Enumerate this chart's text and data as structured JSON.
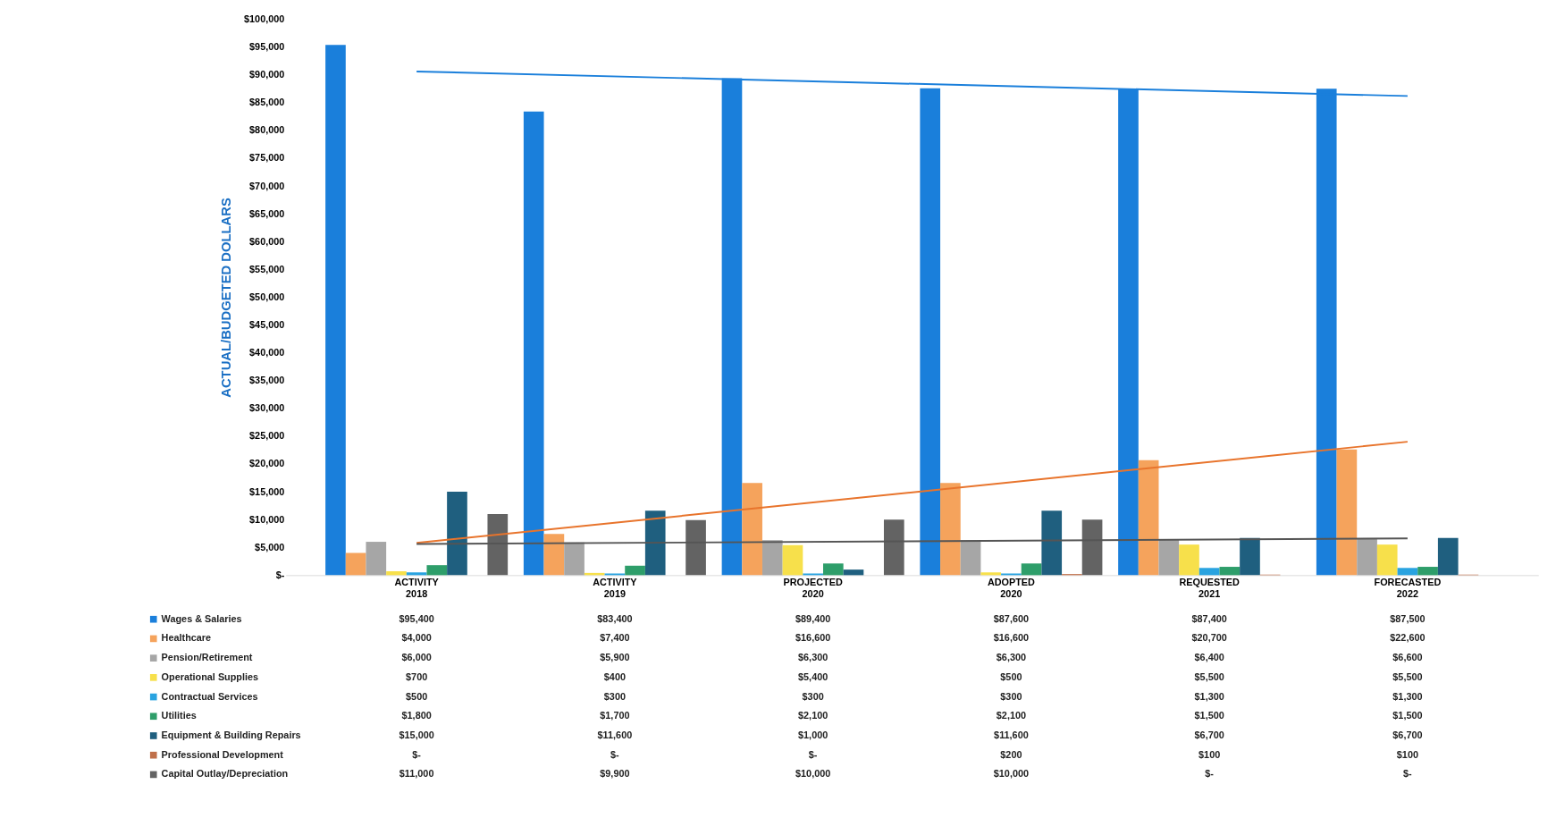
{
  "chart_data": {
    "type": "bar",
    "ylabel": "ACTUAL/BUDGETED DOLLARS",
    "categories": [
      "ACTIVITY\n2018",
      "ACTIVITY\n2019",
      "PROJECTED\n2020",
      "ADOPTED\n2020",
      "REQUESTED\n2021",
      "FORECASTED\n2022"
    ],
    "ylim": [
      0,
      100000
    ],
    "yticks": [
      {
        "value": 0,
        "label": "$-"
      },
      {
        "value": 5000,
        "label": "$5,000"
      },
      {
        "value": 10000,
        "label": "$10,000"
      },
      {
        "value": 15000,
        "label": "$15,000"
      },
      {
        "value": 20000,
        "label": "$20,000"
      },
      {
        "value": 25000,
        "label": "$25,000"
      },
      {
        "value": 30000,
        "label": "$30,000"
      },
      {
        "value": 35000,
        "label": "$35,000"
      },
      {
        "value": 40000,
        "label": "$40,000"
      },
      {
        "value": 45000,
        "label": "$45,000"
      },
      {
        "value": 50000,
        "label": "$50,000"
      },
      {
        "value": 55000,
        "label": "$55,000"
      },
      {
        "value": 60000,
        "label": "$60,000"
      },
      {
        "value": 65000,
        "label": "$65,000"
      },
      {
        "value": 70000,
        "label": "$70,000"
      },
      {
        "value": 75000,
        "label": "$75,000"
      },
      {
        "value": 80000,
        "label": "$80,000"
      },
      {
        "value": 85000,
        "label": "$85,000"
      },
      {
        "value": 90000,
        "label": "$90,000"
      },
      {
        "value": 95000,
        "label": "$95,000"
      },
      {
        "value": 100000,
        "label": "$100,000"
      }
    ],
    "grid": false,
    "legend": "bottom",
    "series": [
      {
        "name": "Wages & Salaries",
        "color": "#1a7fdb",
        "values": [
          95400,
          83400,
          89400,
          87600,
          87400,
          87500
        ],
        "value_labels": [
          "$95,400",
          "$83,400",
          "$89,400",
          "$87,600",
          "$87,400",
          "$87,500"
        ]
      },
      {
        "name": "Healthcare",
        "color": "#f5a35c",
        "values": [
          4000,
          7400,
          16600,
          16600,
          20700,
          22600
        ],
        "value_labels": [
          "$4,000",
          "$7,400",
          "$16,600",
          "$16,600",
          "$20,700",
          "$22,600"
        ]
      },
      {
        "name": "Pension/Retirement",
        "color": "#a6a6a6",
        "values": [
          6000,
          5900,
          6300,
          6300,
          6400,
          6600
        ],
        "value_labels": [
          "$6,000",
          "$5,900",
          "$6,300",
          "$6,300",
          "$6,400",
          "$6,600"
        ]
      },
      {
        "name": "Operational Supplies",
        "color": "#f7e04b",
        "values": [
          700,
          400,
          5400,
          500,
          5500,
          5500
        ],
        "value_labels": [
          "$700",
          "$400",
          "$5,400",
          "$500",
          "$5,500",
          "$5,500"
        ]
      },
      {
        "name": "Contractual Services",
        "color": "#29a3e0",
        "values": [
          500,
          300,
          300,
          300,
          1300,
          1300
        ],
        "value_labels": [
          "$500",
          "$300",
          "$300",
          "$300",
          "$1,300",
          "$1,300"
        ]
      },
      {
        "name": "Utilities",
        "color": "#2e9e6a",
        "values": [
          1800,
          1700,
          2100,
          2100,
          1500,
          1500
        ],
        "value_labels": [
          "$1,800",
          "$1,700",
          "$2,100",
          "$2,100",
          "$1,500",
          "$1,500"
        ]
      },
      {
        "name": "Equipment & Building Repairs",
        "color": "#1f5f7f",
        "values": [
          15000,
          11600,
          1000,
          11600,
          6700,
          6700
        ],
        "value_labels": [
          "$15,000",
          "$11,600",
          "$1,000",
          "$11,600",
          "$6,700",
          "$6,700"
        ]
      },
      {
        "name": "Professional Development",
        "color": "#c0704a",
        "values": [
          0,
          0,
          0,
          200,
          100,
          100
        ],
        "value_labels": [
          "$-",
          "$-",
          "$-",
          "$200",
          "$100",
          "$100"
        ]
      },
      {
        "name": "Capital Outlay/Depreciation",
        "color": "#636363",
        "values": [
          11000,
          9900,
          10000,
          10000,
          0,
          0
        ],
        "value_labels": [
          "$11,000",
          "$9,900",
          "$10,000",
          "$10,000",
          "$-",
          "$-"
        ]
      },
      {
        "type": "line",
        "color": "#1a7fdb",
        "x": [
          "ACTIVITY\n2018",
          "FORECASTED\n2022"
        ],
        "values": [
          90600,
          86200
        ]
      },
      {
        "type": "line",
        "color": "#e8742c",
        "x": [
          "ACTIVITY\n2018",
          "FORECASTED\n2022"
        ],
        "values": [
          5800,
          24000
        ]
      },
      {
        "type": "line",
        "color": "#555555",
        "x": [
          "ACTIVITY\n2018",
          "FORECASTED\n2022"
        ],
        "values": [
          5600,
          6600
        ]
      }
    ]
  }
}
